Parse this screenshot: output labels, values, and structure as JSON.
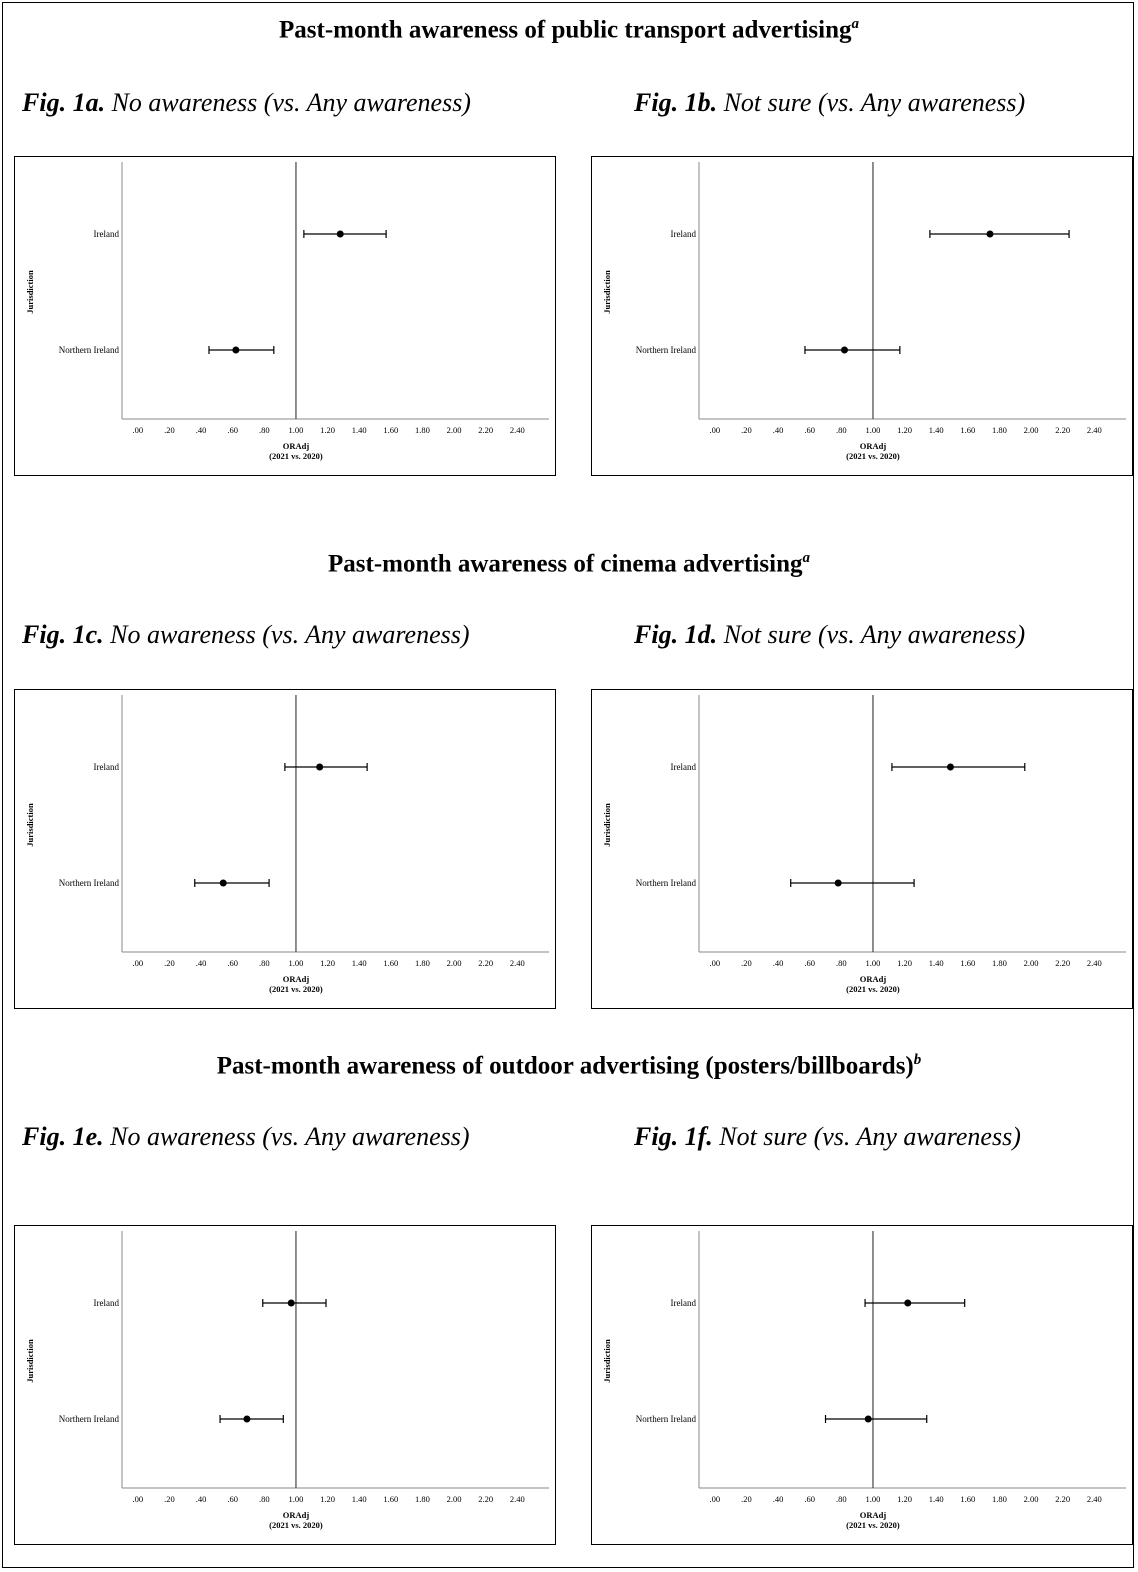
{
  "sections": [
    {
      "title": "Past-month awareness of public transport advertising",
      "note": "a"
    },
    {
      "title": "Past-month awareness of cinema advertising",
      "note": "a"
    },
    {
      "title": "Past-month awareness of outdoor advertising (posters/billboards)",
      "note": "b"
    }
  ],
  "figures": [
    {
      "label": "Fig. 1a.",
      "subtitle": "No awareness (vs. Any awareness)"
    },
    {
      "label": "Fig. 1b.",
      "subtitle": "Not sure (vs. Any awareness)"
    },
    {
      "label": "Fig. 1c.",
      "subtitle": "No awareness (vs. Any awareness)"
    },
    {
      "label": "Fig. 1d.",
      "subtitle": "Not sure (vs. Any awareness)"
    },
    {
      "label": "Fig. 1e.",
      "subtitle": "No awareness (vs. Any awareness)"
    },
    {
      "label": "Fig. 1f.",
      "subtitle": "Not sure (vs. Any awareness)"
    }
  ],
  "chart_data": [
    {
      "type": "scatter",
      "id": "1a",
      "title": "",
      "xlabel": "ORAdj",
      "xlabel2": "(2021 vs. 2020)",
      "ylabel": "Jurisdiction",
      "xlim": [
        -0.1,
        2.6
      ],
      "reference_line": 1.0,
      "xticks": [
        ".00",
        ".20",
        ".40",
        ".60",
        ".80",
        "1.00",
        "1.20",
        "1.40",
        "1.60",
        "1.80",
        "2.00",
        "2.20",
        "2.40"
      ],
      "categories": [
        "Ireland",
        "Northern Ireland"
      ],
      "points": [
        {
          "category": "Ireland",
          "estimate": 1.28,
          "lower": 1.05,
          "upper": 1.57
        },
        {
          "category": "Northern Ireland",
          "estimate": 0.62,
          "lower": 0.45,
          "upper": 0.86
        }
      ]
    },
    {
      "type": "scatter",
      "id": "1b",
      "title": "",
      "xlabel": "ORAdj",
      "xlabel2": "(2021 vs. 2020)",
      "ylabel": "Jurisdiction",
      "xlim": [
        -0.1,
        2.6
      ],
      "reference_line": 1.0,
      "xticks": [
        ".00",
        ".20",
        ".40",
        ".60",
        ".80",
        "1.00",
        "1.20",
        "1.40",
        "1.60",
        "1.80",
        "2.00",
        "2.20",
        "2.40"
      ],
      "categories": [
        "Ireland",
        "Northern Ireland"
      ],
      "points": [
        {
          "category": "Ireland",
          "estimate": 1.74,
          "lower": 1.36,
          "upper": 2.24
        },
        {
          "category": "Northern Ireland",
          "estimate": 0.82,
          "lower": 0.57,
          "upper": 1.17
        }
      ]
    },
    {
      "type": "scatter",
      "id": "1c",
      "title": "",
      "xlabel": "ORAdj",
      "xlabel2": "(2021 vs. 2020)",
      "ylabel": "Jurisdiction",
      "xlim": [
        -0.1,
        2.6
      ],
      "reference_line": 1.0,
      "xticks": [
        ".00",
        ".20",
        ".40",
        ".60",
        ".80",
        "1.00",
        "1.20",
        "1.40",
        "1.60",
        "1.80",
        "2.00",
        "2.20",
        "2.40"
      ],
      "categories": [
        "Ireland",
        "Northern Ireland"
      ],
      "points": [
        {
          "category": "Ireland",
          "estimate": 1.15,
          "lower": 0.93,
          "upper": 1.45
        },
        {
          "category": "Northern Ireland",
          "estimate": 0.54,
          "lower": 0.36,
          "upper": 0.83
        }
      ]
    },
    {
      "type": "scatter",
      "id": "1d",
      "title": "",
      "xlabel": "ORAdj",
      "xlabel2": "(2021 vs. 2020)",
      "ylabel": "Jurisdiction",
      "xlim": [
        -0.1,
        2.6
      ],
      "reference_line": 1.0,
      "xticks": [
        ".00",
        ".20",
        ".40",
        ".60",
        ".80",
        "1.00",
        "1.20",
        "1.40",
        "1.60",
        "1.80",
        "2.00",
        "2.20",
        "2.40"
      ],
      "categories": [
        "Ireland",
        "Northern Ireland"
      ],
      "points": [
        {
          "category": "Ireland",
          "estimate": 1.49,
          "lower": 1.12,
          "upper": 1.96
        },
        {
          "category": "Northern Ireland",
          "estimate": 0.78,
          "lower": 0.48,
          "upper": 1.26
        }
      ]
    },
    {
      "type": "scatter",
      "id": "1e",
      "title": "",
      "xlabel": "ORAdj",
      "xlabel2": "(2021 vs. 2020)",
      "ylabel": "Jurisdiction",
      "xlim": [
        -0.1,
        2.6
      ],
      "reference_line": 1.0,
      "xticks": [
        ".00",
        ".20",
        ".40",
        ".60",
        ".80",
        "1.00",
        "1.20",
        "1.40",
        "1.60",
        "1.80",
        "2.00",
        "2.20",
        "2.40"
      ],
      "categories": [
        "Ireland",
        "Northern Ireland"
      ],
      "points": [
        {
          "category": "Ireland",
          "estimate": 0.97,
          "lower": 0.79,
          "upper": 1.19
        },
        {
          "category": "Northern Ireland",
          "estimate": 0.69,
          "lower": 0.52,
          "upper": 0.92
        }
      ]
    },
    {
      "type": "scatter",
      "id": "1f",
      "title": "",
      "xlabel": "ORAdj",
      "xlabel2": "(2021 vs. 2020)",
      "ylabel": "Jurisdiction",
      "xlim": [
        -0.1,
        2.6
      ],
      "reference_line": 1.0,
      "xticks": [
        ".00",
        ".20",
        ".40",
        ".60",
        ".80",
        "1.00",
        "1.20",
        "1.40",
        "1.60",
        "1.80",
        "2.00",
        "2.20",
        "2.40"
      ],
      "categories": [
        "Ireland",
        "Northern Ireland"
      ],
      "points": [
        {
          "category": "Ireland",
          "estimate": 1.22,
          "lower": 0.95,
          "upper": 1.58
        },
        {
          "category": "Northern Ireland",
          "estimate": 0.97,
          "lower": 0.7,
          "upper": 1.34
        }
      ]
    }
  ]
}
